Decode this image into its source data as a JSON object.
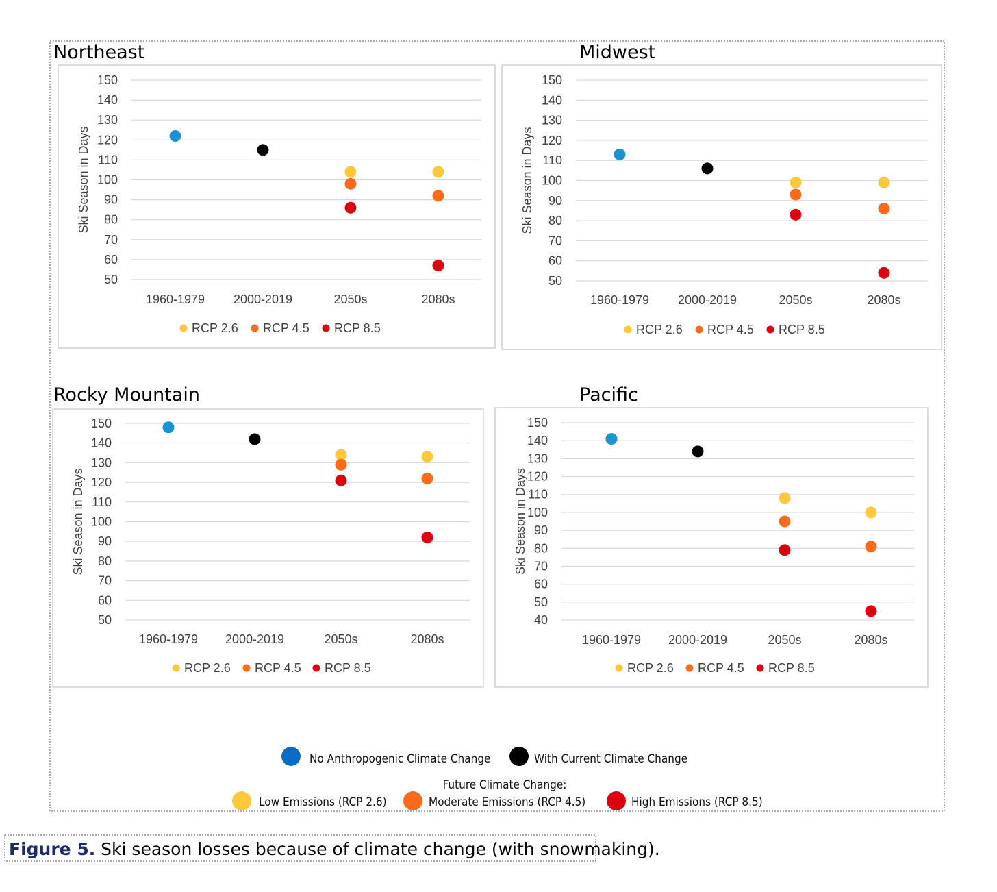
{
  "colors": {
    "no_anthro": "#1b93d1",
    "current": "#000000",
    "rcp26": "#ffc83d",
    "rcp45": "#fc6a1c",
    "rcp85": "#dc0010",
    "legend_blue": "#0a6cc4"
  },
  "chart_data": [
    {
      "type": "scatter",
      "title": "Northeast",
      "ylabel": "Ski Season in Days",
      "categories": [
        "1960-1979",
        "2000-2019",
        "2050s",
        "2080s"
      ],
      "ylim": [
        50,
        150
      ],
      "yticks": [
        50,
        60,
        70,
        80,
        90,
        100,
        110,
        120,
        130,
        140,
        150
      ],
      "grid": true,
      "legend": [
        "RCP 2.6",
        "RCP 4.5",
        "RCP 8.5"
      ],
      "legend_position": "bottom",
      "series": [
        {
          "name": "No Anthropogenic Climate Change",
          "key": "no_anthro",
          "values": [
            122,
            null,
            null,
            null
          ]
        },
        {
          "name": "With Current Climate Change",
          "key": "current",
          "values": [
            null,
            115,
            null,
            null
          ]
        },
        {
          "name": "RCP 2.6",
          "key": "rcp26",
          "values": [
            null,
            null,
            104,
            104
          ]
        },
        {
          "name": "RCP 4.5",
          "key": "rcp45",
          "values": [
            null,
            null,
            98,
            92
          ]
        },
        {
          "name": "RCP 8.5",
          "key": "rcp85",
          "values": [
            null,
            null,
            86,
            57
          ]
        }
      ]
    },
    {
      "type": "scatter",
      "title": "Midwest",
      "ylabel": "Ski Season in Days",
      "categories": [
        "1960-1979",
        "2000-2019",
        "2050s",
        "2080s"
      ],
      "ylim": [
        50,
        150
      ],
      "yticks": [
        50,
        60,
        70,
        80,
        90,
        100,
        110,
        120,
        130,
        140,
        150
      ],
      "grid": true,
      "legend": [
        "RCP 2.6",
        "RCP 4.5",
        "RCP 8.5"
      ],
      "legend_position": "bottom",
      "series": [
        {
          "name": "No Anthropogenic Climate Change",
          "key": "no_anthro",
          "values": [
            113,
            null,
            null,
            null
          ]
        },
        {
          "name": "With Current Climate Change",
          "key": "current",
          "values": [
            null,
            106,
            null,
            null
          ]
        },
        {
          "name": "RCP 2.6",
          "key": "rcp26",
          "values": [
            null,
            null,
            99,
            99
          ]
        },
        {
          "name": "RCP 4.5",
          "key": "rcp45",
          "values": [
            null,
            null,
            93,
            86
          ]
        },
        {
          "name": "RCP 8.5",
          "key": "rcp85",
          "values": [
            null,
            null,
            83,
            54
          ]
        }
      ]
    },
    {
      "type": "scatter",
      "title": "Rocky Mountain",
      "ylabel": "Ski Season in Days",
      "categories": [
        "1960-1979",
        "2000-2019",
        "2050s",
        "2080s"
      ],
      "ylim": [
        50,
        150
      ],
      "yticks": [
        50,
        60,
        70,
        80,
        90,
        100,
        110,
        120,
        130,
        140,
        150
      ],
      "grid": true,
      "legend": [
        "RCP 2.6",
        "RCP 4.5",
        "RCP 8.5"
      ],
      "legend_position": "bottom",
      "series": [
        {
          "name": "No Anthropogenic Climate Change",
          "key": "no_anthro",
          "values": [
            148,
            null,
            null,
            null
          ]
        },
        {
          "name": "With Current Climate Change",
          "key": "current",
          "values": [
            null,
            142,
            null,
            null
          ]
        },
        {
          "name": "RCP 2.6",
          "key": "rcp26",
          "values": [
            null,
            null,
            134,
            133
          ]
        },
        {
          "name": "RCP 4.5",
          "key": "rcp45",
          "values": [
            null,
            null,
            129,
            122
          ]
        },
        {
          "name": "RCP 8.5",
          "key": "rcp85",
          "values": [
            null,
            null,
            121,
            92
          ]
        }
      ]
    },
    {
      "type": "scatter",
      "title": "Pacific",
      "ylabel": "Ski Season in Days",
      "categories": [
        "1960-1979",
        "2000-2019",
        "2050s",
        "2080s"
      ],
      "ylim": [
        40,
        150
      ],
      "yticks": [
        40,
        50,
        60,
        70,
        80,
        90,
        100,
        110,
        120,
        130,
        140,
        150
      ],
      "grid": true,
      "legend": [
        "RCP 2.6",
        "RCP 4.5",
        "RCP 8.5"
      ],
      "legend_position": "bottom",
      "series": [
        {
          "name": "No Anthropogenic Climate Change",
          "key": "no_anthro",
          "values": [
            141,
            null,
            null,
            null
          ]
        },
        {
          "name": "With Current Climate Change",
          "key": "current",
          "values": [
            null,
            134,
            null,
            null
          ]
        },
        {
          "name": "RCP 2.6",
          "key": "rcp26",
          "values": [
            null,
            null,
            108,
            100
          ]
        },
        {
          "name": "RCP 4.5",
          "key": "rcp45",
          "values": [
            null,
            null,
            95,
            81
          ]
        },
        {
          "name": "RCP 8.5",
          "key": "rcp85",
          "values": [
            null,
            null,
            79,
            45
          ]
        }
      ]
    }
  ],
  "shared_legend": {
    "row1": [
      {
        "label": "No Anthropogenic Climate Change",
        "key": "legend_blue"
      },
      {
        "label": "With Current Climate Change",
        "key": "current"
      }
    ],
    "heading": "Future Climate Change:",
    "row2": [
      {
        "label": "Low Emissions (RCP 2.6)",
        "key": "rcp26"
      },
      {
        "label": "Moderate Emissions (RCP 4.5)",
        "key": "rcp45"
      },
      {
        "label": "High Emissions (RCP 8.5)",
        "key": "rcp85"
      }
    ]
  },
  "caption": {
    "label": "Figure 5.",
    "text": " Ski season losses because of climate change (with snowmaking)."
  }
}
